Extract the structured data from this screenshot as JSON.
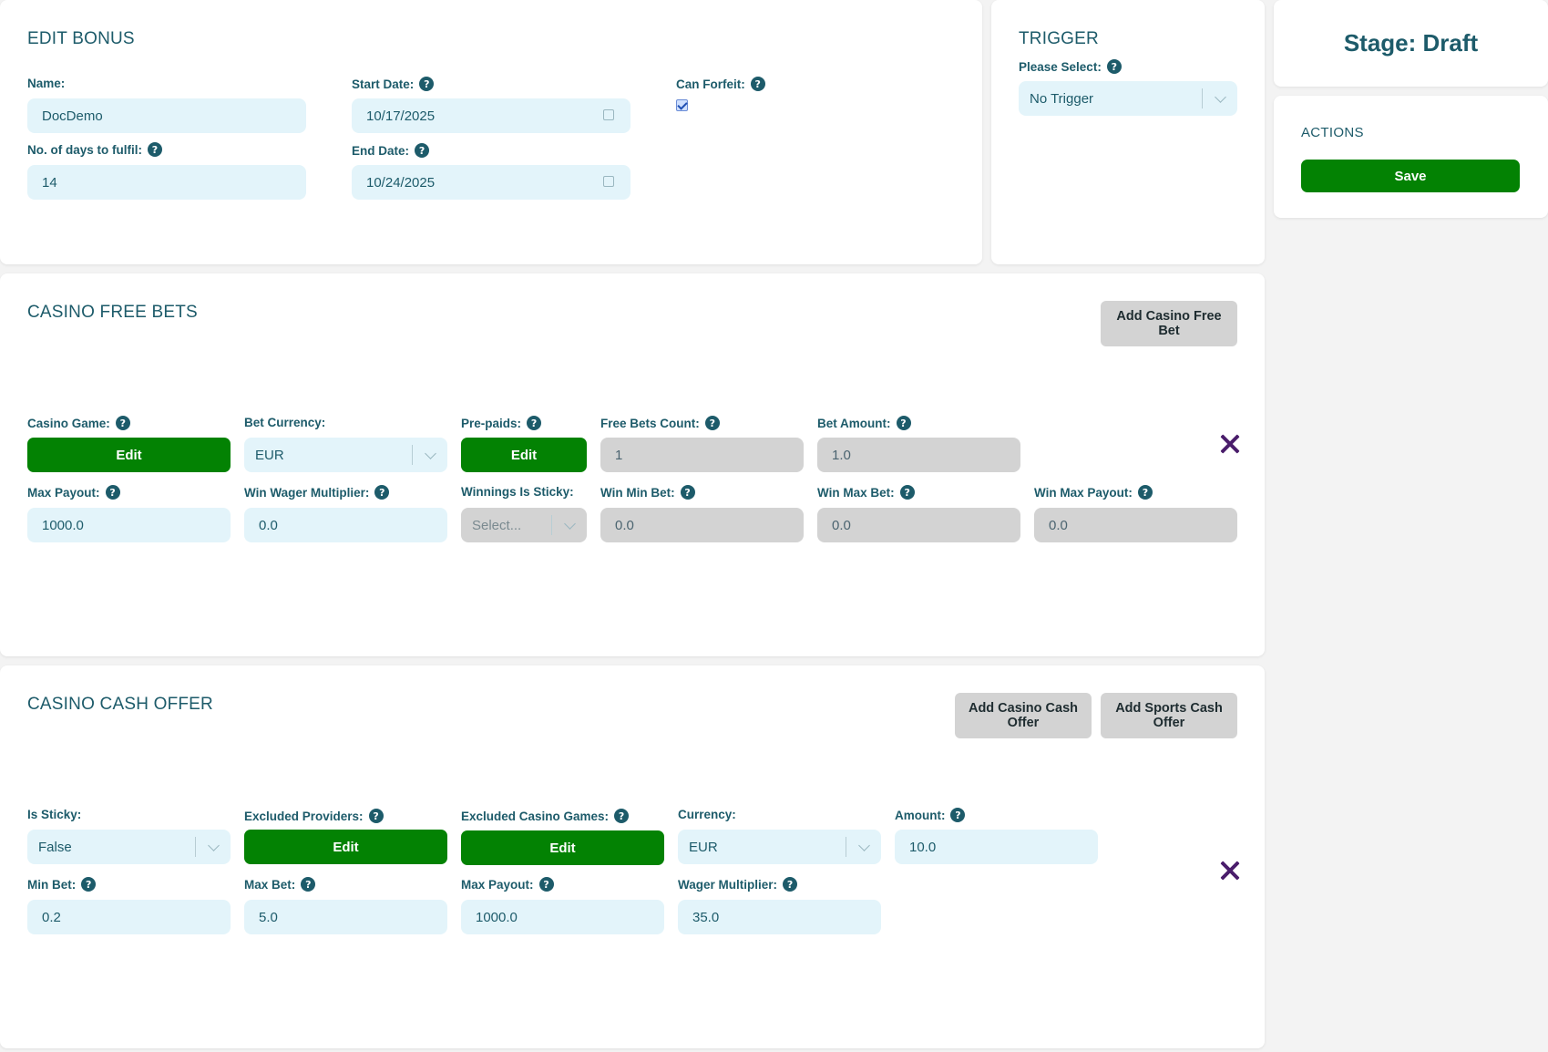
{
  "edit_bonus": {
    "title": "EDIT BONUS",
    "name_label": "Name:",
    "name_value": "DocDemo",
    "start_date_label": "Start Date:",
    "start_date_value": "10/17/2025",
    "can_forfeit_label": "Can Forfeit:",
    "can_forfeit_checked": true,
    "days_label": "No. of days to fulfil:",
    "days_value": "14",
    "end_date_label": "End Date:",
    "end_date_value": "10/24/2025"
  },
  "trigger": {
    "title": "TRIGGER",
    "select_label": "Please Select:",
    "select_value": "No Trigger"
  },
  "stage": {
    "text": "Stage: Draft"
  },
  "actions": {
    "title": "ACTIONS",
    "save_label": "Save"
  },
  "free_bets": {
    "title": "CASINO FREE BETS",
    "add_button": "Add Casino Free Bet",
    "casino_game_label": "Casino Game:",
    "casino_game_button": "Edit",
    "bet_currency_label": "Bet Currency:",
    "bet_currency_value": "EUR",
    "prepaids_label": "Pre-paids:",
    "prepaids_button": "Edit",
    "free_bets_count_label": "Free Bets Count:",
    "free_bets_count_value": "1",
    "bet_amount_label": "Bet Amount:",
    "bet_amount_value": "1.0",
    "max_payout_label": "Max Payout:",
    "max_payout_value": "1000.0",
    "win_wager_label": "Win Wager Multiplier:",
    "win_wager_value": "0.0",
    "sticky_label": "Winnings Is Sticky:",
    "sticky_placeholder": "Select...",
    "win_min_bet_label": "Win Min Bet:",
    "win_min_bet_value": "0.0",
    "win_max_bet_label": "Win Max Bet:",
    "win_max_bet_value": "0.0",
    "win_max_payout_label": "Win Max Payout:",
    "win_max_payout_value": "0.0"
  },
  "cash_offer": {
    "title": "CASINO CASH OFFER",
    "add_casino_button": "Add Casino Cash Offer",
    "add_sports_button": "Add Sports Cash Offer",
    "is_sticky_label": "Is Sticky:",
    "is_sticky_value": "False",
    "excluded_providers_label": "Excluded Providers:",
    "excluded_providers_button": "Edit",
    "excluded_games_label": "Excluded Casino Games:",
    "excluded_games_button": "Edit",
    "currency_label": "Currency:",
    "currency_value": "EUR",
    "amount_label": "Amount:",
    "amount_value": "10.0",
    "min_bet_label": "Min Bet:",
    "min_bet_value": "0.2",
    "max_bet_label": "Max Bet:",
    "max_bet_value": "5.0",
    "max_payout_label": "Max Payout:",
    "max_payout_value": "1000.0",
    "wager_label": "Wager Multiplier:",
    "wager_value": "35.0"
  },
  "colors": {
    "accent": "#1d5b6a",
    "green": "#038203",
    "input_bg": "#e3f4fa",
    "disabled_bg": "#d3d3d3",
    "remove": "#4a1d6b"
  }
}
